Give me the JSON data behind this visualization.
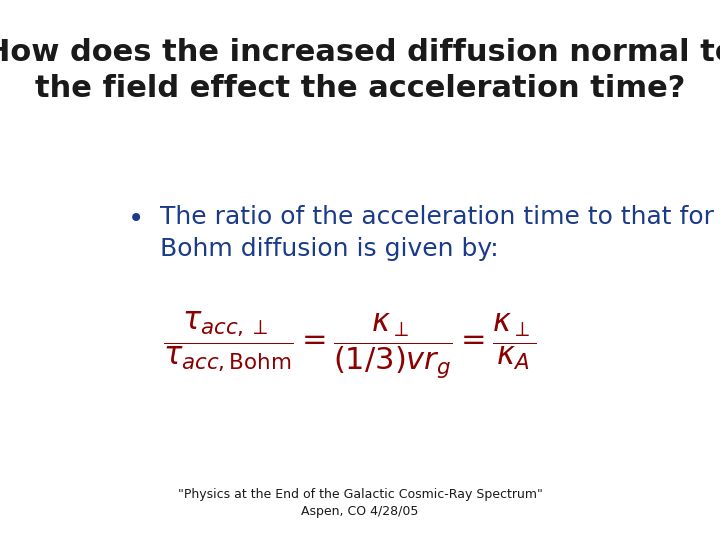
{
  "title_line1": "How does the increased diffusion normal to",
  "title_line2": "the field effect the acceleration time?",
  "title_color": "#1a1a1a",
  "title_fontsize": 22,
  "bullet_text_line1": "The ratio of the acceleration time to that for",
  "bullet_text_line2": "Bohm diffusion is given by:",
  "bullet_color": "#1a3a8a",
  "bullet_fontsize": 18,
  "formula_color": "#8b0000",
  "formula_fontsize": 22,
  "footer_line1": "\"Physics at the End of the Galactic Cosmic-Ray Spectrum\"",
  "footer_line2": "Aspen, CO 4/28/05",
  "footer_color": "#1a1a1a",
  "footer_fontsize": 9,
  "bg_color": "#ffffff"
}
